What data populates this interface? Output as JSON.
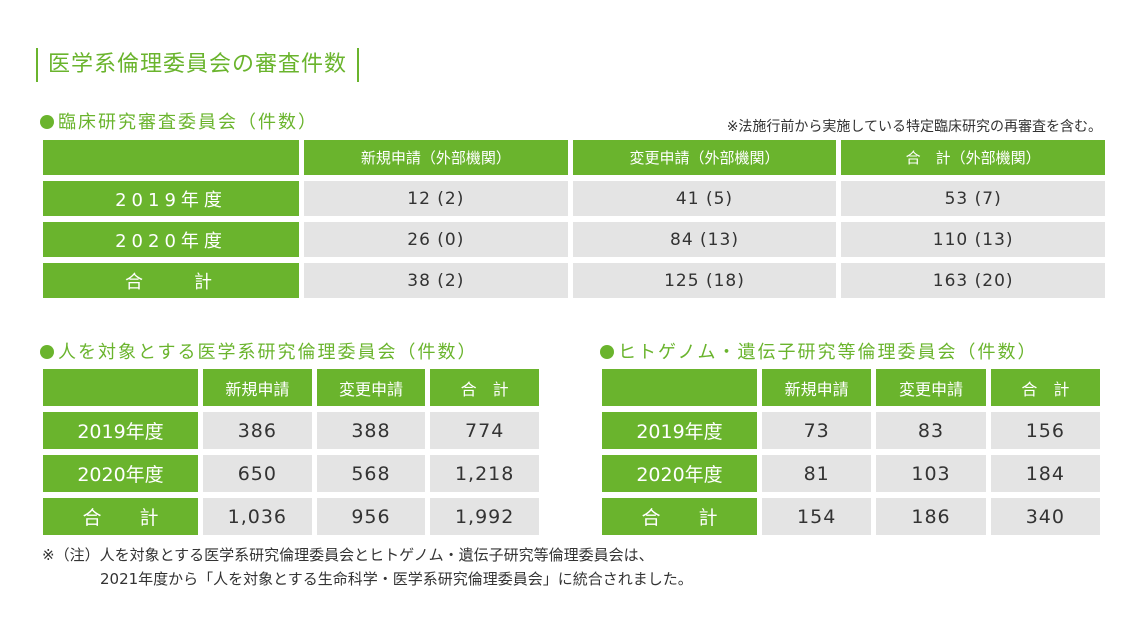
{
  "title": "医学系倫理委員会の審査件数",
  "section1": {
    "heading": "臨床研究審査委員会（件数）",
    "note": "※法施行前から実施している特定臨床研究の再審査を含む。",
    "headers": [
      "新規申請（外部機関）",
      "変更申請（外部機関）",
      "合　計（外部機関）"
    ],
    "rows": [
      {
        "label": "2019年度",
        "values": [
          "12 (2)",
          "41  (5)",
          "53  (7)"
        ]
      },
      {
        "label": "2020年度",
        "values": [
          "26 (0)",
          "84 (13)",
          "110 (13)"
        ]
      },
      {
        "label": "合　　計",
        "values": [
          "38 (2)",
          "125 (18)",
          "163 (20)"
        ]
      }
    ]
  },
  "section2": {
    "heading": "人を対象とする医学系研究倫理委員会（件数）",
    "headers": [
      "新規申請",
      "変更申請",
      "合　計"
    ],
    "rows": [
      {
        "label": "2019年度",
        "values": [
          "386",
          "388",
          "774"
        ]
      },
      {
        "label": "2020年度",
        "values": [
          "650",
          "568",
          "1,218"
        ]
      },
      {
        "label": "合　　計",
        "values": [
          "1,036",
          "956",
          "1,992"
        ]
      }
    ]
  },
  "section3": {
    "heading": "ヒトゲノム・遺伝子研究等倫理委員会（件数）",
    "headers": [
      "新規申請",
      "変更申請",
      "合　計"
    ],
    "rows": [
      {
        "label": "2019年度",
        "values": [
          "73",
          "83",
          "156"
        ]
      },
      {
        "label": "2020年度",
        "values": [
          "81",
          "103",
          "184"
        ]
      },
      {
        "label": "合　　計",
        "values": [
          "154",
          "186",
          "340"
        ]
      }
    ]
  },
  "footnote": {
    "line1": "※（注）人を対象とする医学系研究倫理委員会とヒトゲノム・遺伝子研究等倫理委員会は、",
    "line2": "2021年度から「人を対象とする生命科学・医学系研究倫理委員会」に統合されました。"
  },
  "colors": {
    "accent": "#6ab42d",
    "cell": "#e4e4e4"
  }
}
